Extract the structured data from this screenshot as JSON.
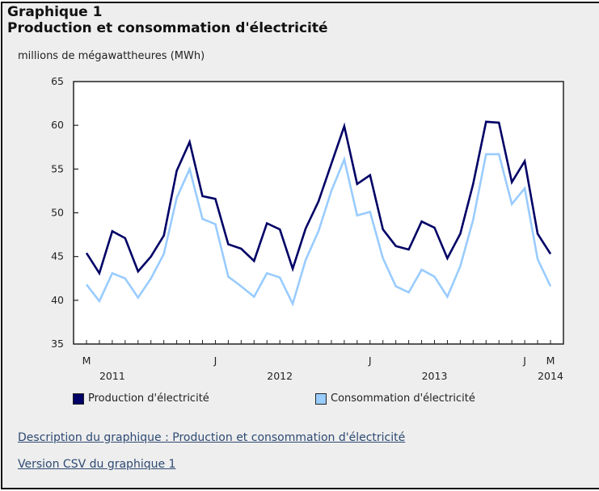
{
  "header": {
    "title_line1": "Graphique 1",
    "title_line2": "Production et consommation d'électricité",
    "unit_label": "millions de mégawattheures (MWh)"
  },
  "colors": {
    "production": "#000066",
    "consumption": "#99ccff",
    "background": "#eeeeee",
    "link": "#2e4a73"
  },
  "chart_data": {
    "type": "line",
    "title": "Production et consommation d'électricité",
    "ylabel": "millions de mégawattheures (MWh)",
    "xlabel": "",
    "ylim": [
      35,
      65
    ],
    "yticks": [
      35,
      40,
      45,
      50,
      55,
      60,
      65
    ],
    "grid": false,
    "legend_position": "bottom",
    "x": [
      "2011-03",
      "2011-04",
      "2011-05",
      "2011-06",
      "2011-07",
      "2011-08",
      "2011-09",
      "2011-10",
      "2011-11",
      "2011-12",
      "2012-01",
      "2012-02",
      "2012-03",
      "2012-04",
      "2012-05",
      "2012-06",
      "2012-07",
      "2012-08",
      "2012-09",
      "2012-10",
      "2012-11",
      "2012-12",
      "2013-01",
      "2013-02",
      "2013-03",
      "2013-04",
      "2013-05",
      "2013-06",
      "2013-07",
      "2013-08",
      "2013-09",
      "2013-10",
      "2013-11",
      "2013-12",
      "2014-01",
      "2014-02",
      "2014-03"
    ],
    "x_tick_labels": [
      {
        "index": 0,
        "label": "M"
      },
      {
        "index": 10,
        "label": "J"
      },
      {
        "index": 22,
        "label": "J"
      },
      {
        "index": 34,
        "label": "J"
      },
      {
        "index": 36,
        "label": "M"
      }
    ],
    "year_labels": [
      {
        "index": 2,
        "label": "2011"
      },
      {
        "index": 15,
        "label": "2012"
      },
      {
        "index": 27,
        "label": "2013"
      },
      {
        "index": 36,
        "label": "2014"
      }
    ],
    "series": [
      {
        "name": "Production d'électricité",
        "values": [
          45.4,
          43.1,
          47.9,
          47.1,
          43.3,
          45.0,
          47.4,
          54.8,
          58.1,
          51.9,
          51.6,
          46.4,
          45.9,
          44.5,
          48.8,
          48.1,
          43.6,
          48.2,
          51.3,
          55.6,
          59.9,
          53.3,
          54.3,
          48.1,
          46.2,
          45.8,
          49.0,
          48.3,
          44.8,
          47.6,
          53.3,
          60.4,
          60.3,
          53.5,
          55.9,
          47.6,
          45.3
        ]
      },
      {
        "name": "Consommation d'électricité",
        "values": [
          41.8,
          39.9,
          43.1,
          42.5,
          40.3,
          42.5,
          45.3,
          51.7,
          55.0,
          49.3,
          48.7,
          42.7,
          41.6,
          40.4,
          43.1,
          42.6,
          39.6,
          44.6,
          47.9,
          52.5,
          56.1,
          49.7,
          50.1,
          44.8,
          41.6,
          40.9,
          43.5,
          42.7,
          40.4,
          43.9,
          49.2,
          56.7,
          56.7,
          51.0,
          52.8,
          44.7,
          41.6
        ]
      }
    ]
  },
  "legend": {
    "production_label": "Production d'électricité",
    "consumption_label": "Consommation d'électricité"
  },
  "links": {
    "description": "Description du graphique : Production et consommation d'électricité",
    "csv": "Version CSV du graphique 1"
  }
}
